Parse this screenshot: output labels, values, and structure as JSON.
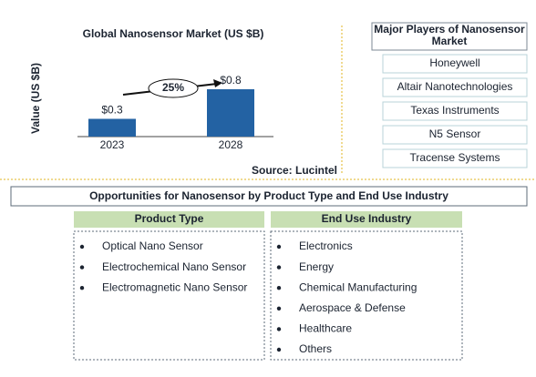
{
  "chart_data": {
    "type": "bar",
    "title": "Global Nanosensor Market (US $B)",
    "y_label": "Value (US $B)",
    "categories": [
      "2023",
      "2028"
    ],
    "values": [
      0.3,
      0.8
    ],
    "value_labels": [
      "$0.3",
      "$0.8"
    ],
    "color": "#2362a3",
    "annotation": "25%",
    "source": "Source: Lucintel"
  },
  "players": {
    "title": "Major Players of Nanosensor Market",
    "items": [
      "Honeywell",
      "Altair Nanotechnologies",
      "Texas Instruments",
      "N5 Sensor",
      "Tracense Systems"
    ]
  },
  "opportunities": {
    "title": "Opportunities for Nanosensor by Product Type and End Use Industry",
    "columns": [
      {
        "header": "Product Type",
        "items": [
          "Optical Nano Sensor",
          "Electrochemical Nano Sensor",
          "Electromagnetic Nano Sensor"
        ]
      },
      {
        "header": "End Use Industry",
        "items": [
          "Electronics",
          "Energy",
          "Chemical Manufacturing",
          "Aerospace & Defense",
          "Healthcare",
          "Others"
        ]
      }
    ]
  }
}
